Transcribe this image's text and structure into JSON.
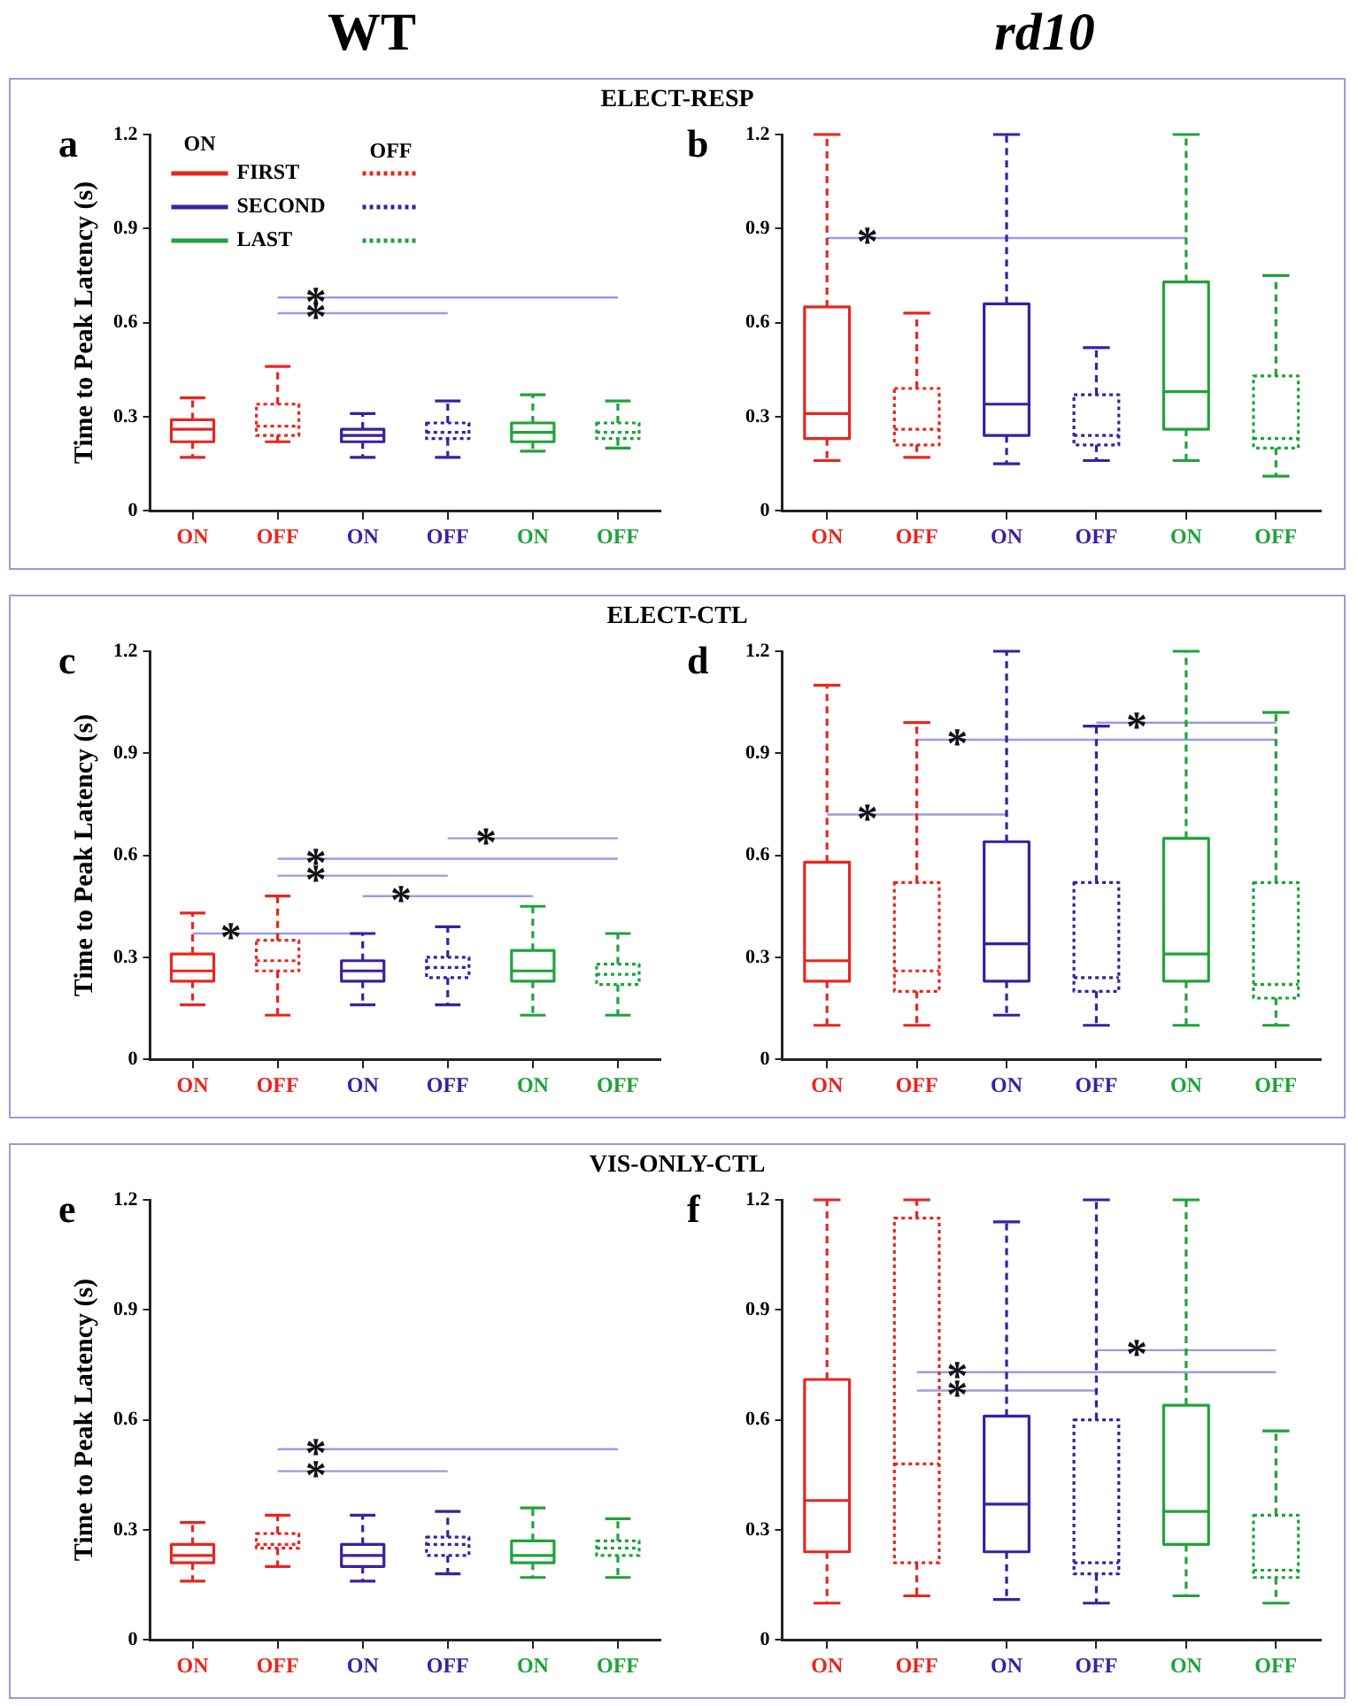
{
  "chart_data": [
    {
      "type": "box",
      "title": "WT",
      "subtitle": "ELECT-RESP",
      "ylabel": "Time to Peak Latency (s)",
      "categories": [
        "ON",
        "OFF",
        "ON",
        "OFF",
        "ON",
        "OFF"
      ],
      "ylim": [
        0,
        1.2
      ],
      "yticks": [
        0,
        0.3,
        0.6,
        0.9,
        1.2
      ],
      "legend": "top left",
      "annotations": [
        "a",
        "ON",
        "OFF"
      ],
      "series": [
        {
          "name": "FIRST",
          "color": "#e8261f",
          "line_style": "solid",
          "boxes": [
            {
              "low": 0.17,
              "q1": 0.22,
              "median": 0.26,
              "q3": 0.29,
              "high": 0.36
            },
            null,
            null,
            null,
            null,
            null
          ]
        },
        {
          "color": "#e8261f",
          "line_style": "dotted",
          "boxes": [
            null,
            {
              "low": 0.22,
              "q1": 0.24,
              "median": 0.27,
              "q3": 0.34,
              "high": 0.46
            },
            null,
            null,
            null,
            null
          ]
        },
        {
          "name": "SECOND",
          "color": "#3b1fa3",
          "line_style": "solid",
          "boxes": [
            null,
            null,
            {
              "low": 0.17,
              "q1": 0.22,
              "median": 0.24,
              "q3": 0.26,
              "high": 0.31
            },
            null,
            null,
            null
          ]
        },
        {
          "color": "#3b1fa3",
          "line_style": "dotted",
          "boxes": [
            null,
            null,
            null,
            {
              "low": 0.17,
              "q1": 0.23,
              "median": 0.25,
              "q3": 0.28,
              "high": 0.35
            },
            null,
            null
          ]
        },
        {
          "name": "LAST",
          "color": "#1fa33a",
          "line_style": "solid",
          "boxes": [
            null,
            null,
            null,
            null,
            {
              "low": 0.19,
              "q1": 0.22,
              "median": 0.25,
              "q3": 0.28,
              "high": 0.37
            },
            null
          ]
        },
        {
          "color": "#1fa33a",
          "line_style": "dotted",
          "boxes": [
            null,
            null,
            null,
            null,
            null,
            {
              "low": 0.2,
              "q1": 0.23,
              "median": 0.25,
              "q3": 0.28,
              "high": 0.35
            }
          ]
        },
        {
          "type": "line",
          "name": "*",
          "color": "#9b9be3",
          "values": [
            null,
            0.68,
            0.68,
            0.68,
            0.68,
            0.68
          ]
        },
        {
          "type": "line",
          "name": "*",
          "color": "#9b9be3",
          "values": [
            null,
            0.63,
            0.63,
            0.63,
            null,
            null
          ]
        }
      ]
    },
    {
      "type": "box",
      "title": "rd10",
      "categories": [
        "ON",
        "OFF",
        "ON",
        "OFF",
        "ON",
        "OFF"
      ],
      "ylim": [
        0,
        1.2
      ],
      "yticks": [
        0,
        0.3,
        0.6,
        0.9,
        1.2
      ],
      "annotations": [
        "b"
      ],
      "series": [
        {
          "color": "#e8261f",
          "line_style": "solid",
          "boxes": [
            {
              "low": 0.16,
              "q1": 0.23,
              "median": 0.31,
              "q3": 0.65,
              "high": 1.2
            },
            null,
            null,
            null,
            null,
            null
          ]
        },
        {
          "color": "#e8261f",
          "line_style": "dotted",
          "boxes": [
            null,
            {
              "low": 0.17,
              "q1": 0.21,
              "median": 0.26,
              "q3": 0.39,
              "high": 0.63
            },
            null,
            null,
            null,
            null
          ]
        },
        {
          "color": "#3b1fa3",
          "line_style": "solid",
          "boxes": [
            null,
            null,
            {
              "low": 0.15,
              "q1": 0.24,
              "median": 0.34,
              "q3": 0.66,
              "high": 1.2
            },
            null,
            null,
            null
          ]
        },
        {
          "color": "#3b1fa3",
          "line_style": "dotted",
          "boxes": [
            null,
            null,
            null,
            {
              "low": 0.16,
              "q1": 0.21,
              "median": 0.24,
              "q3": 0.37,
              "high": 0.52
            },
            null,
            null
          ]
        },
        {
          "color": "#1fa33a",
          "line_style": "solid",
          "boxes": [
            null,
            null,
            null,
            null,
            {
              "low": 0.16,
              "q1": 0.26,
              "median": 0.38,
              "q3": 0.73,
              "high": 1.2
            },
            null
          ]
        },
        {
          "color": "#1fa33a",
          "line_style": "dotted",
          "boxes": [
            null,
            null,
            null,
            null,
            null,
            {
              "low": 0.11,
              "q1": 0.2,
              "median": 0.23,
              "q3": 0.43,
              "high": 0.75
            }
          ]
        },
        {
          "type": "line",
          "name": "*",
          "color": "#9b9be3",
          "values": [
            0.87,
            0.87,
            0.87,
            0.87,
            0.87,
            null
          ]
        }
      ]
    },
    {
      "type": "box",
      "subtitle": "ELECT-CTL",
      "ylabel": "Time to Peak Latency (s)",
      "categories": [
        "ON",
        "OFF",
        "ON",
        "OFF",
        "ON",
        "OFF"
      ],
      "ylim": [
        0,
        1.2
      ],
      "yticks": [
        0,
        0.3,
        0.6,
        0.9,
        1.2
      ],
      "annotations": [
        "c"
      ],
      "series": [
        {
          "color": "#e8261f",
          "line_style": "solid",
          "boxes": [
            {
              "low": 0.16,
              "q1": 0.23,
              "median": 0.26,
              "q3": 0.31,
              "high": 0.43
            },
            null,
            null,
            null,
            null,
            null
          ]
        },
        {
          "color": "#e8261f",
          "line_style": "dotted",
          "boxes": [
            null,
            {
              "low": 0.13,
              "q1": 0.26,
              "median": 0.29,
              "q3": 0.35,
              "high": 0.48
            },
            null,
            null,
            null,
            null
          ]
        },
        {
          "color": "#3b1fa3",
          "line_style": "solid",
          "boxes": [
            null,
            null,
            {
              "low": 0.16,
              "q1": 0.23,
              "median": 0.26,
              "q3": 0.29,
              "high": 0.37
            },
            null,
            null,
            null
          ]
        },
        {
          "color": "#3b1fa3",
          "line_style": "dotted",
          "boxes": [
            null,
            null,
            null,
            {
              "low": 0.16,
              "q1": 0.24,
              "median": 0.27,
              "q3": 0.3,
              "high": 0.39
            },
            null,
            null
          ]
        },
        {
          "color": "#1fa33a",
          "line_style": "solid",
          "boxes": [
            null,
            null,
            null,
            null,
            {
              "low": 0.13,
              "q1": 0.23,
              "median": 0.26,
              "q3": 0.32,
              "high": 0.45
            },
            null
          ]
        },
        {
          "color": "#1fa33a",
          "line_style": "dotted",
          "boxes": [
            null,
            null,
            null,
            null,
            null,
            {
              "low": 0.13,
              "q1": 0.22,
              "median": 0.25,
              "q3": 0.28,
              "high": 0.37
            }
          ]
        },
        {
          "type": "line",
          "name": "*",
          "color": "#9b9be3",
          "values": [
            0.37,
            0.37,
            0.37,
            null,
            null,
            null
          ]
        },
        {
          "type": "line",
          "name": "*",
          "color": "#9b9be3",
          "values": [
            null,
            null,
            0.48,
            0.48,
            0.48,
            null
          ]
        },
        {
          "type": "line",
          "name": "*",
          "color": "#9b9be3",
          "values": [
            null,
            0.54,
            0.54,
            0.54,
            null,
            null
          ]
        },
        {
          "type": "line",
          "name": "*",
          "color": "#9b9be3",
          "values": [
            null,
            0.59,
            0.59,
            0.59,
            0.59,
            0.59
          ]
        },
        {
          "type": "line",
          "name": "*",
          "color": "#9b9be3",
          "values": [
            null,
            null,
            null,
            0.65,
            0.65,
            0.65
          ]
        }
      ]
    },
    {
      "type": "box",
      "categories": [
        "ON",
        "OFF",
        "ON",
        "OFF",
        "ON",
        "OFF"
      ],
      "ylim": [
        0,
        1.2
      ],
      "yticks": [
        0,
        0.3,
        0.6,
        0.9,
        1.2
      ],
      "annotations": [
        "d"
      ],
      "series": [
        {
          "color": "#e8261f",
          "line_style": "solid",
          "boxes": [
            {
              "low": 0.1,
              "q1": 0.23,
              "median": 0.29,
              "q3": 0.58,
              "high": 1.1
            },
            null,
            null,
            null,
            null,
            null
          ]
        },
        {
          "color": "#e8261f",
          "line_style": "dotted",
          "boxes": [
            null,
            {
              "low": 0.1,
              "q1": 0.2,
              "median": 0.26,
              "q3": 0.52,
              "high": 0.99
            },
            null,
            null,
            null,
            null
          ]
        },
        {
          "color": "#3b1fa3",
          "line_style": "solid",
          "boxes": [
            null,
            null,
            {
              "low": 0.13,
              "q1": 0.23,
              "median": 0.34,
              "q3": 0.64,
              "high": 1.2
            },
            null,
            null,
            null
          ]
        },
        {
          "color": "#3b1fa3",
          "line_style": "dotted",
          "boxes": [
            null,
            null,
            null,
            {
              "low": 0.1,
              "q1": 0.2,
              "median": 0.24,
              "q3": 0.52,
              "high": 0.98
            },
            null,
            null
          ]
        },
        {
          "color": "#1fa33a",
          "line_style": "solid",
          "boxes": [
            null,
            null,
            null,
            null,
            {
              "low": 0.1,
              "q1": 0.23,
              "median": 0.31,
              "q3": 0.65,
              "high": 1.2
            },
            null
          ]
        },
        {
          "color": "#1fa33a",
          "line_style": "dotted",
          "boxes": [
            null,
            null,
            null,
            null,
            null,
            {
              "low": 0.1,
              "q1": 0.18,
              "median": 0.22,
              "q3": 0.52,
              "high": 1.02
            }
          ]
        },
        {
          "type": "line",
          "name": "*",
          "color": "#9b9be3",
          "values": [
            0.72,
            0.72,
            0.72,
            null,
            null,
            null
          ]
        },
        {
          "type": "line",
          "name": "*",
          "color": "#9b9be3",
          "values": [
            null,
            0.94,
            0.94,
            0.94,
            0.94,
            0.94
          ]
        },
        {
          "type": "line",
          "name": "*",
          "color": "#9b9be3",
          "values": [
            null,
            null,
            null,
            0.99,
            0.99,
            0.99
          ]
        }
      ]
    },
    {
      "type": "box",
      "subtitle": "VIS-ONLY-CTL",
      "ylabel": "Time to Peak Latency (s)",
      "categories": [
        "ON",
        "OFF",
        "ON",
        "OFF",
        "ON",
        "OFF"
      ],
      "ylim": [
        0,
        1.2
      ],
      "yticks": [
        0,
        0.3,
        0.6,
        0.9,
        1.2
      ],
      "annotations": [
        "e"
      ],
      "series": [
        {
          "color": "#e8261f",
          "line_style": "solid",
          "boxes": [
            {
              "low": 0.16,
              "q1": 0.21,
              "median": 0.23,
              "q3": 0.26,
              "high": 0.32
            },
            null,
            null,
            null,
            null,
            null
          ]
        },
        {
          "color": "#e8261f",
          "line_style": "dotted",
          "boxes": [
            null,
            {
              "low": 0.2,
              "q1": 0.25,
              "median": 0.26,
              "q3": 0.29,
              "high": 0.34
            },
            null,
            null,
            null,
            null
          ]
        },
        {
          "color": "#3b1fa3",
          "line_style": "solid",
          "boxes": [
            null,
            null,
            {
              "low": 0.16,
              "q1": 0.2,
              "median": 0.23,
              "q3": 0.26,
              "high": 0.34
            },
            null,
            null,
            null
          ]
        },
        {
          "color": "#3b1fa3",
          "line_style": "dotted",
          "boxes": [
            null,
            null,
            null,
            {
              "low": 0.18,
              "q1": 0.23,
              "median": 0.26,
              "q3": 0.28,
              "high": 0.35
            },
            null,
            null
          ]
        },
        {
          "color": "#1fa33a",
          "line_style": "solid",
          "boxes": [
            null,
            null,
            null,
            null,
            {
              "low": 0.17,
              "q1": 0.21,
              "median": 0.23,
              "q3": 0.27,
              "high": 0.36
            },
            null
          ]
        },
        {
          "color": "#1fa33a",
          "line_style": "dotted",
          "boxes": [
            null,
            null,
            null,
            null,
            null,
            {
              "low": 0.17,
              "q1": 0.23,
              "median": 0.25,
              "q3": 0.27,
              "high": 0.33
            }
          ]
        },
        {
          "type": "line",
          "name": "*",
          "color": "#9b9be3",
          "values": [
            null,
            0.52,
            0.52,
            0.52,
            0.52,
            0.52
          ]
        },
        {
          "type": "line",
          "name": "*",
          "color": "#9b9be3",
          "values": [
            null,
            0.46,
            0.46,
            0.46,
            null,
            null
          ]
        }
      ]
    },
    {
      "type": "box",
      "categories": [
        "ON",
        "OFF",
        "ON",
        "OFF",
        "ON",
        "OFF"
      ],
      "ylim": [
        0,
        1.2
      ],
      "yticks": [
        0,
        0.3,
        0.6,
        0.9,
        1.2
      ],
      "annotations": [
        "f"
      ],
      "series": [
        {
          "color": "#e8261f",
          "line_style": "solid",
          "boxes": [
            {
              "low": 0.1,
              "q1": 0.24,
              "median": 0.38,
              "q3": 0.71,
              "high": 1.2
            },
            null,
            null,
            null,
            null,
            null
          ]
        },
        {
          "color": "#e8261f",
          "line_style": "dotted",
          "boxes": [
            null,
            {
              "low": 0.12,
              "q1": 0.21,
              "median": 0.48,
              "q3": 1.15,
              "high": 1.2
            },
            null,
            null,
            null,
            null
          ]
        },
        {
          "color": "#3b1fa3",
          "line_style": "solid",
          "boxes": [
            null,
            null,
            {
              "low": 0.11,
              "q1": 0.24,
              "median": 0.37,
              "q3": 0.61,
              "high": 1.14
            },
            null,
            null,
            null
          ]
        },
        {
          "color": "#3b1fa3",
          "line_style": "dotted",
          "boxes": [
            null,
            null,
            null,
            {
              "low": 0.1,
              "q1": 0.18,
              "median": 0.21,
              "q3": 0.6,
              "high": 1.2
            },
            null,
            null
          ]
        },
        {
          "color": "#1fa33a",
          "line_style": "solid",
          "boxes": [
            null,
            null,
            null,
            null,
            {
              "low": 0.12,
              "q1": 0.26,
              "median": 0.35,
              "q3": 0.64,
              "high": 1.2
            },
            null
          ]
        },
        {
          "color": "#1fa33a",
          "line_style": "dotted",
          "boxes": [
            null,
            null,
            null,
            null,
            null,
            {
              "low": 0.1,
              "q1": 0.17,
              "median": 0.19,
              "q3": 0.34,
              "high": 0.57
            }
          ]
        },
        {
          "type": "line",
          "name": "*",
          "color": "#9b9be3",
          "values": [
            null,
            null,
            null,
            0.79,
            0.79,
            0.79
          ]
        },
        {
          "type": "line",
          "name": "*",
          "color": "#9b9be3",
          "values": [
            null,
            0.73,
            0.73,
            0.73,
            0.73,
            0.73
          ]
        },
        {
          "type": "line",
          "name": "*",
          "color": "#9b9be3",
          "values": [
            null,
            0.68,
            0.68,
            0.68,
            null,
            null
          ]
        }
      ]
    }
  ]
}
